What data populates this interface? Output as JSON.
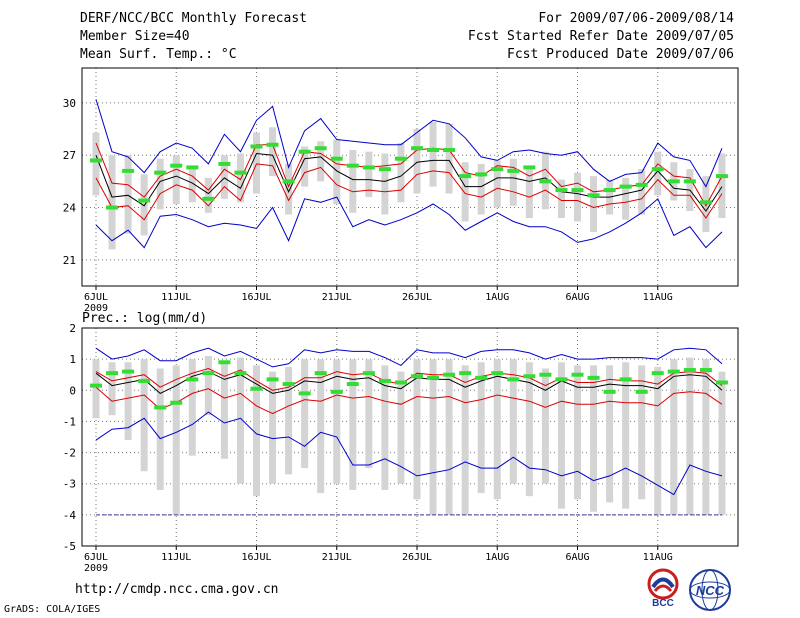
{
  "header": {
    "title": "DERF/NCC/BCC Monthly Forecast",
    "member_size": "Member Size=40",
    "variable": "Mean Surf. Temp.: °C",
    "period": "For 2009/07/06-2009/08/14",
    "started": "Fcst Started Refer Date 2009/07/05",
    "produced": "Fcst Produced Date 2009/07/06"
  },
  "footer": {
    "url": "http://cmdp.ncc.cma.gov.cn",
    "credit": "GrADS: COLA/IGES",
    "logo_bcc": "BCC",
    "logo_ncc": "NCC"
  },
  "colors": {
    "envelope": "#0000cc",
    "band": "#dd0000",
    "mean": "#000000",
    "obs": "#33dd33",
    "box": "#d4d4d4"
  },
  "chart_data": [
    {
      "type": "line",
      "title": "Mean Surf. Temp.: °C",
      "ylim": [
        19.5,
        32
      ],
      "yticks": [
        21,
        24,
        27,
        30
      ],
      "x_tick_labels": [
        "6JUL",
        "11JUL",
        "16JUL",
        "21JUL",
        "26JUL",
        "1AUG",
        "6AUG",
        "11AUG"
      ],
      "x_sublabel": "2009",
      "day_start": 6,
      "days": 40,
      "series": [
        {
          "name": "max",
          "values": [
            30.2,
            27.2,
            26.9,
            26.0,
            27.2,
            27.7,
            27.4,
            26.5,
            28.2,
            27.2,
            29.0,
            29.8,
            26.3,
            28.4,
            29.1,
            27.9,
            27.8,
            27.7,
            27.6,
            27.6,
            28.3,
            29.0,
            28.8,
            28.0,
            26.9,
            26.7,
            27.2,
            27.3,
            27.1,
            27.0,
            27.2,
            26.2,
            25.5,
            25.9,
            26.0,
            27.7,
            26.9,
            26.7,
            25.2,
            27.4
          ]
        },
        {
          "name": "upper",
          "values": [
            27.7,
            25.4,
            25.3,
            24.6,
            25.8,
            26.2,
            25.8,
            25.0,
            26.2,
            25.6,
            27.6,
            27.6,
            25.2,
            27.2,
            27.1,
            26.5,
            26.4,
            26.3,
            26.4,
            26.5,
            27.3,
            27.4,
            27.3,
            26.0,
            25.8,
            26.4,
            26.3,
            25.8,
            26.2,
            25.2,
            25.4,
            24.9,
            25.0,
            25.2,
            25.3,
            26.5,
            25.8,
            25.7,
            24.1,
            25.8
          ]
        },
        {
          "name": "mean",
          "values": [
            27.0,
            24.6,
            24.7,
            24.1,
            25.5,
            25.8,
            25.4,
            24.8,
            25.7,
            25.1,
            27.1,
            27.0,
            24.9,
            26.8,
            26.9,
            26.1,
            25.6,
            25.6,
            25.5,
            25.8,
            26.6,
            26.7,
            26.7,
            25.2,
            25.2,
            25.7,
            25.7,
            25.5,
            25.7,
            24.9,
            24.8,
            24.6,
            24.6,
            24.8,
            25.0,
            26.1,
            25.1,
            25.0,
            23.8,
            25.2
          ]
        },
        {
          "name": "lower",
          "values": [
            25.7,
            24.0,
            24.1,
            23.3,
            24.8,
            25.3,
            25.0,
            24.1,
            25.2,
            24.4,
            26.5,
            26.4,
            24.4,
            26.0,
            26.3,
            25.3,
            24.9,
            25.0,
            24.9,
            25.0,
            25.9,
            26.1,
            26.0,
            24.8,
            24.6,
            25.1,
            24.9,
            24.6,
            25.0,
            24.4,
            24.4,
            24.0,
            24.2,
            24.3,
            24.5,
            25.6,
            24.7,
            24.7,
            23.4,
            24.8
          ]
        },
        {
          "name": "min",
          "values": [
            23.0,
            22.1,
            22.7,
            21.7,
            23.5,
            23.6,
            23.3,
            22.9,
            23.1,
            23.0,
            22.8,
            24.0,
            22.1,
            24.5,
            24.3,
            24.6,
            22.9,
            23.3,
            23.0,
            23.3,
            23.7,
            24.2,
            23.6,
            22.7,
            23.2,
            23.7,
            23.2,
            22.9,
            22.9,
            22.6,
            22.0,
            22.2,
            22.6,
            23.1,
            23.7,
            24.5,
            22.4,
            22.9,
            21.7,
            22.6
          ]
        }
      ],
      "box_high": [
        28.3,
        27.0,
        27.0,
        25.9,
        26.8,
        27.0,
        26.4,
        25.7,
        27.0,
        27.1,
        28.3,
        28.6,
        26.5,
        27.5,
        27.8,
        27.9,
        27.3,
        27.2,
        27.1,
        27.7,
        28.5,
        28.9,
        28.8,
        26.6,
        26.5,
        26.7,
        26.8,
        26.2,
        27.2,
        25.6,
        26.0,
        25.8,
        25.6,
        25.7,
        26.2,
        27.2,
        26.6,
        26.2,
        25.8,
        27.1
      ],
      "box_low": [
        24.7,
        21.6,
        22.5,
        22.4,
        23.9,
        24.2,
        24.3,
        23.7,
        24.5,
        24.3,
        24.8,
        25.8,
        23.6,
        25.2,
        25.5,
        24.2,
        23.7,
        24.6,
        23.6,
        24.3,
        24.8,
        25.2,
        24.8,
        23.2,
        23.6,
        24.0,
        24.1,
        23.4,
        23.9,
        23.4,
        23.2,
        22.6,
        23.6,
        23.3,
        23.6,
        24.7,
        24.4,
        23.8,
        22.6,
        23.4
      ],
      "obs": [
        26.7,
        24.0,
        26.1,
        24.4,
        26.0,
        26.4,
        26.3,
        24.5,
        26.5,
        26.0,
        27.5,
        27.6,
        25.5,
        27.2,
        27.4,
        26.8,
        26.4,
        26.3,
        26.2,
        26.8,
        27.4,
        27.3,
        27.3,
        25.8,
        25.9,
        26.2,
        26.1,
        26.3,
        25.5,
        25.0,
        25.0,
        24.7,
        25.0,
        25.2,
        25.3,
        26.2,
        25.5,
        25.5,
        24.3,
        25.8
      ]
    },
    {
      "type": "line",
      "title": "Prec.: log(mm/d)",
      "ylim": [
        -5,
        2
      ],
      "yticks": [
        -5,
        -4,
        -3,
        -2,
        -1,
        0,
        1,
        2
      ],
      "x_tick_labels": [
        "6JUL",
        "11JUL",
        "16JUL",
        "21JUL",
        "26JUL",
        "1AUG",
        "6AUG",
        "11AUG"
      ],
      "x_sublabel": "2009",
      "day_start": 6,
      "days": 40,
      "baseline": -4,
      "series": [
        {
          "name": "max",
          "values": [
            1.35,
            1.0,
            1.1,
            1.3,
            0.95,
            0.95,
            1.2,
            1.35,
            1.1,
            1.25,
            1.0,
            0.75,
            0.85,
            1.3,
            1.2,
            1.3,
            1.25,
            1.25,
            1.05,
            0.8,
            1.3,
            1.2,
            1.2,
            1.05,
            1.25,
            1.3,
            1.3,
            1.2,
            1.0,
            1.15,
            1.0,
            1.0,
            1.05,
            1.05,
            1.05,
            1.0,
            1.3,
            1.35,
            1.3,
            0.85
          ]
        },
        {
          "name": "upper",
          "values": [
            0.6,
            0.3,
            0.4,
            0.5,
            0.1,
            0.35,
            0.55,
            0.7,
            0.45,
            0.65,
            0.3,
            0.0,
            0.1,
            0.4,
            0.4,
            0.6,
            0.5,
            0.55,
            0.3,
            0.2,
            0.55,
            0.5,
            0.5,
            0.25,
            0.45,
            0.55,
            0.5,
            0.4,
            0.15,
            0.4,
            0.25,
            0.25,
            0.35,
            0.3,
            0.3,
            0.2,
            0.55,
            0.6,
            0.55,
            0.15
          ]
        },
        {
          "name": "mean",
          "values": [
            0.55,
            0.15,
            0.25,
            0.35,
            -0.1,
            0.15,
            0.45,
            0.6,
            0.35,
            0.5,
            0.2,
            -0.1,
            0.0,
            0.3,
            0.25,
            0.45,
            0.35,
            0.4,
            0.15,
            0.05,
            0.4,
            0.35,
            0.35,
            0.1,
            0.3,
            0.45,
            0.35,
            0.25,
            0.0,
            0.3,
            0.1,
            0.1,
            0.2,
            0.15,
            0.15,
            0.05,
            0.45,
            0.5,
            0.45,
            0.0
          ]
        },
        {
          "name": "lower",
          "values": [
            0.1,
            -0.35,
            -0.25,
            -0.15,
            -0.6,
            -0.4,
            -0.1,
            0.05,
            -0.25,
            -0.1,
            -0.5,
            -0.75,
            -0.5,
            -0.3,
            -0.35,
            -0.15,
            -0.25,
            -0.2,
            -0.35,
            -0.45,
            -0.2,
            -0.25,
            -0.2,
            -0.4,
            -0.3,
            -0.15,
            -0.25,
            -0.35,
            -0.55,
            -0.35,
            -0.45,
            -0.45,
            -0.35,
            -0.4,
            -0.4,
            -0.5,
            -0.1,
            -0.05,
            -0.1,
            -0.45
          ]
        },
        {
          "name": "min",
          "values": [
            -1.6,
            -1.25,
            -1.2,
            -0.9,
            -1.55,
            -1.35,
            -1.1,
            -0.7,
            -1.05,
            -0.9,
            -1.4,
            -1.55,
            -1.5,
            -1.8,
            -1.35,
            -1.5,
            -2.4,
            -2.4,
            -2.2,
            -2.45,
            -2.75,
            -2.65,
            -2.55,
            -2.3,
            -2.5,
            -2.5,
            -2.15,
            -2.5,
            -2.55,
            -2.75,
            -2.6,
            -2.9,
            -2.75,
            -2.5,
            -2.75,
            -3.05,
            -3.35,
            -2.4,
            -2.6,
            -2.75
          ]
        }
      ],
      "box_high": [
        1.0,
        0.9,
        0.9,
        1.0,
        0.7,
        0.8,
        1.0,
        1.1,
        0.9,
        1.05,
        0.8,
        0.6,
        0.75,
        1.0,
        1.0,
        1.0,
        1.0,
        1.0,
        0.8,
        0.6,
        1.0,
        1.0,
        1.0,
        0.8,
        0.9,
        1.0,
        1.0,
        0.9,
        0.7,
        0.9,
        0.8,
        0.8,
        0.8,
        0.9,
        0.8,
        0.75,
        1.0,
        1.05,
        1.0,
        0.6
      ],
      "box_low": [
        -0.9,
        -0.8,
        -1.6,
        -2.6,
        -3.2,
        -4.0,
        -2.1,
        -0.8,
        -2.2,
        -3.0,
        -3.4,
        -3.0,
        -2.7,
        -2.5,
        -3.3,
        -3.0,
        -3.2,
        -2.5,
        -3.2,
        -3.0,
        -3.5,
        -4.0,
        -4.0,
        -4.0,
        -3.3,
        -3.5,
        -3.0,
        -3.4,
        -3.0,
        -3.8,
        -3.5,
        -3.9,
        -3.6,
        -3.8,
        -3.5,
        -4.0,
        -4.0,
        -4.0,
        -4.0,
        -4.0
      ],
      "obs": [
        0.15,
        0.55,
        0.6,
        0.3,
        -0.55,
        -0.4,
        0.35,
        0.55,
        0.9,
        0.55,
        0.05,
        0.35,
        0.2,
        -0.1,
        0.55,
        -0.05,
        0.2,
        0.55,
        0.3,
        0.25,
        0.45,
        0.4,
        0.5,
        0.55,
        0.4,
        0.55,
        0.35,
        0.45,
        0.5,
        0.35,
        0.5,
        0.4,
        -0.05,
        0.35,
        -0.05,
        0.55,
        0.6,
        0.65,
        0.65,
        0.25
      ]
    }
  ]
}
